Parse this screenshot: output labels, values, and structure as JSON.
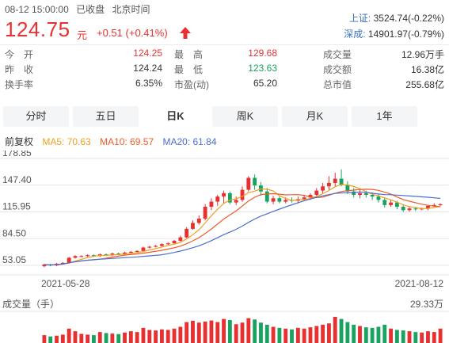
{
  "header": {
    "datetime": "08-12 15:00:00",
    "status": "已收盘",
    "timezone": "北京时间",
    "price": "124.75",
    "unit": "元",
    "change": "+0.51",
    "change_pct": "(+0.41%)"
  },
  "indices": [
    {
      "name": "上证:",
      "value": "3524.74(-0.22%)"
    },
    {
      "name": "深成:",
      "value": "14901.97(-0.79%)"
    }
  ],
  "stats": {
    "col1": [
      {
        "label": "今　开",
        "value": "124.25",
        "color": "red"
      },
      {
        "label": "昨　收",
        "value": "124.24",
        "color": "normal"
      },
      {
        "label": "换手率",
        "value": "6.35%",
        "color": "normal"
      }
    ],
    "col2": [
      {
        "label": "最　高",
        "value": "129.68",
        "color": "red"
      },
      {
        "label": "最　低",
        "value": "123.63",
        "color": "green"
      },
      {
        "label": "市盈(动)",
        "value": "65.20",
        "color": "normal"
      }
    ],
    "col3": [
      {
        "label": "成交量",
        "value": "12.96万手",
        "color": "normal"
      },
      {
        "label": "成交额",
        "value": "16.38亿",
        "color": "normal"
      },
      {
        "label": "总市值",
        "value": "255.68亿",
        "color": "normal"
      }
    ]
  },
  "tabs": [
    {
      "label": "分时",
      "active": false
    },
    {
      "label": "五日",
      "active": false
    },
    {
      "label": "日K",
      "active": true
    },
    {
      "label": "周K",
      "active": false
    },
    {
      "label": "月K",
      "active": false
    },
    {
      "label": "1年",
      "active": false
    }
  ],
  "ma": {
    "adjust": "前复权",
    "ma5": "MA5: 70.63",
    "ma10": "MA10: 69.57",
    "ma20": "MA20: 61.84"
  },
  "colors": {
    "up": "#e93030",
    "down": "#1aa260",
    "ma5": "#f0a020",
    "ma10": "#f05a28",
    "ma20": "#4a6fd4"
  },
  "chart_data": {
    "type": "candlestick",
    "y_ticks": [
      "178.85",
      "147.40",
      "115.95",
      "84.50",
      "53.05"
    ],
    "y_range": [
      53.05,
      178.85
    ],
    "x_start_label": "2021-05-28",
    "x_end_label": "2021-08-12",
    "volume_label": "成交量（手）",
    "volume_max_label": "29.33万",
    "candles": [
      [
        52,
        54,
        51,
        55
      ],
      [
        54,
        53,
        52,
        55
      ],
      [
        53,
        55,
        52,
        56
      ],
      [
        55,
        56,
        54,
        57
      ],
      [
        56,
        62,
        55,
        63
      ],
      [
        62,
        64,
        61,
        65
      ],
      [
        64,
        64,
        63,
        65
      ],
      [
        64,
        65,
        63,
        66
      ],
      [
        65,
        64,
        63,
        66
      ],
      [
        64,
        66,
        63,
        67
      ],
      [
        66,
        65,
        64,
        67
      ],
      [
        65,
        67,
        64,
        68
      ],
      [
        67,
        66,
        65,
        68
      ],
      [
        66,
        68,
        65,
        69
      ],
      [
        68,
        69,
        67,
        70
      ],
      [
        69,
        70,
        68,
        71
      ],
      [
        70,
        74,
        69,
        75
      ],
      [
        74,
        75,
        73,
        76
      ],
      [
        75,
        76,
        74,
        77
      ],
      [
        76,
        78,
        75,
        79
      ],
      [
        78,
        79,
        77,
        80
      ],
      [
        79,
        82,
        78,
        83
      ],
      [
        82,
        86,
        81,
        88
      ],
      [
        86,
        96,
        85,
        98
      ],
      [
        96,
        103,
        95,
        106
      ],
      [
        103,
        108,
        101,
        112
      ],
      [
        108,
        122,
        106,
        125
      ],
      [
        122,
        128,
        118,
        132
      ],
      [
        128,
        134,
        123,
        136
      ],
      [
        134,
        138,
        126,
        141
      ],
      [
        138,
        127,
        125,
        140
      ],
      [
        127,
        130,
        124,
        134
      ],
      [
        130,
        142,
        128,
        146
      ],
      [
        142,
        156,
        140,
        158
      ],
      [
        156,
        147,
        142,
        160
      ],
      [
        147,
        140,
        135,
        151
      ],
      [
        140,
        128,
        126,
        144
      ],
      [
        128,
        132,
        125,
        135
      ],
      [
        132,
        128,
        126,
        134
      ],
      [
        128,
        130,
        126,
        133
      ],
      [
        130,
        129,
        127,
        133
      ],
      [
        129,
        131,
        126,
        134
      ],
      [
        131,
        133,
        130,
        136
      ],
      [
        133,
        136,
        130,
        138
      ],
      [
        136,
        141,
        133,
        144
      ],
      [
        141,
        146,
        137,
        150
      ],
      [
        146,
        150,
        142,
        158
      ],
      [
        150,
        155,
        146,
        162
      ],
      [
        155,
        148,
        146,
        166
      ],
      [
        148,
        140,
        137,
        152
      ],
      [
        140,
        136,
        133,
        144
      ],
      [
        136,
        138,
        132,
        142
      ],
      [
        138,
        136,
        133,
        141
      ],
      [
        136,
        134,
        130,
        139
      ],
      [
        134,
        130,
        127,
        137
      ],
      [
        130,
        124,
        121,
        133
      ],
      [
        124,
        127,
        122,
        130
      ],
      [
        127,
        122,
        119,
        129
      ],
      [
        122,
        118,
        116,
        125
      ],
      [
        118,
        120,
        116,
        122
      ],
      [
        120,
        119,
        117,
        122
      ],
      [
        119,
        120,
        118,
        121
      ],
      [
        120,
        123,
        118,
        124
      ],
      [
        123,
        124,
        122,
        126
      ],
      [
        124,
        125,
        123,
        126
      ]
    ],
    "volumes": [
      0.3,
      0.25,
      0.28,
      0.32,
      0.55,
      0.45,
      0.35,
      0.32,
      0.3,
      0.42,
      0.38,
      0.36,
      0.34,
      0.4,
      0.45,
      0.42,
      0.58,
      0.5,
      0.48,
      0.52,
      0.5,
      0.55,
      0.62,
      0.8,
      0.85,
      0.78,
      0.82,
      0.86,
      0.8,
      0.92,
      0.88,
      0.72,
      0.78,
      0.95,
      0.9,
      0.78,
      0.7,
      0.62,
      0.58,
      0.55,
      0.52,
      0.58,
      0.55,
      0.6,
      0.65,
      0.7,
      0.75,
      1.0,
      0.92,
      0.8,
      0.7,
      0.65,
      0.6,
      0.58,
      0.62,
      0.7,
      0.55,
      0.5,
      0.48,
      0.45,
      0.42,
      0.4,
      0.45,
      0.42,
      0.55
    ]
  }
}
